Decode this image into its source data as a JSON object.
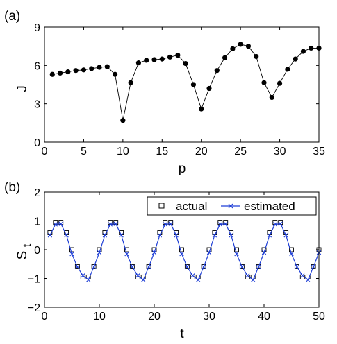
{
  "chart_data": [
    {
      "type": "line",
      "panel_label": "(a)",
      "xlabel": "p",
      "ylabel": "J",
      "xlim": [
        0,
        35
      ],
      "ylim": [
        0,
        9
      ],
      "xticks": [
        0,
        5,
        10,
        15,
        20,
        25,
        30,
        35
      ],
      "yticks": [
        0,
        3,
        6,
        9
      ],
      "grid": false,
      "series": [
        {
          "color": "#000000",
          "marker": "filled-circle",
          "x": [
            1,
            2,
            3,
            4,
            5,
            6,
            7,
            8,
            9,
            10,
            11,
            12,
            13,
            14,
            15,
            16,
            17,
            18,
            19,
            20,
            21,
            22,
            23,
            24,
            25,
            26,
            27,
            28,
            29,
            30,
            31,
            32,
            33,
            34,
            35
          ],
          "y": [
            5.3,
            5.4,
            5.5,
            5.6,
            5.65,
            5.75,
            5.85,
            5.9,
            5.3,
            1.7,
            4.65,
            6.2,
            6.4,
            6.45,
            6.5,
            6.65,
            6.8,
            6.15,
            4.5,
            2.6,
            4.2,
            5.6,
            6.6,
            7.3,
            7.65,
            7.5,
            6.7,
            4.65,
            3.5,
            4.6,
            5.7,
            6.5,
            7.1,
            7.35,
            7.35
          ]
        }
      ]
    },
    {
      "type": "line",
      "panel_label": "(b)",
      "xlabel": "t",
      "ylabel": "S",
      "ylabel_sub": "t",
      "xlim": [
        0,
        50
      ],
      "ylim": [
        -2,
        2
      ],
      "xticks": [
        0,
        10,
        20,
        30,
        40,
        50
      ],
      "yticks": [
        -2,
        -1,
        0,
        1,
        2
      ],
      "grid": false,
      "legend": "top-right",
      "series": [
        {
          "name": "actual",
          "color": "#000000",
          "marker": "open-square",
          "x": [
            1,
            2,
            3,
            4,
            5,
            6,
            7,
            8,
            9,
            10,
            11,
            12,
            13,
            14,
            15,
            16,
            17,
            18,
            19,
            20,
            21,
            22,
            23,
            24,
            25,
            26,
            27,
            28,
            29,
            30,
            31,
            32,
            33,
            34,
            35,
            36,
            37,
            38,
            39,
            40,
            41,
            42,
            43,
            44,
            45,
            46,
            47,
            48,
            49,
            50
          ],
          "y": [
            0.59,
            0.95,
            0.95,
            0.59,
            0,
            -0.59,
            -0.95,
            -0.95,
            -0.59,
            0,
            0.59,
            0.95,
            0.95,
            0.59,
            0,
            -0.59,
            -0.95,
            -0.95,
            -0.59,
            0,
            0.59,
            0.95,
            0.95,
            0.59,
            0,
            -0.59,
            -0.95,
            -0.95,
            -0.59,
            0,
            0.59,
            0.95,
            0.95,
            0.59,
            0,
            -0.59,
            -0.95,
            -0.95,
            -0.59,
            0,
            0.59,
            0.95,
            0.95,
            0.59,
            0,
            -0.59,
            -0.95,
            -0.95,
            -0.59,
            0
          ]
        },
        {
          "name": "estimated",
          "color": "#1f3fd6",
          "marker": "x",
          "x": [
            1,
            2,
            3,
            4,
            5,
            6,
            7,
            8,
            9,
            10,
            11,
            12,
            13,
            14,
            15,
            16,
            17,
            18,
            19,
            20,
            21,
            22,
            23,
            24,
            25,
            26,
            27,
            28,
            29,
            30,
            31,
            32,
            33,
            34,
            35,
            36,
            37,
            38,
            39,
            40,
            41,
            42,
            43,
            44,
            45,
            46,
            47,
            48,
            49,
            50
          ],
          "y": [
            0.5,
            0.88,
            0.9,
            0.5,
            -0.15,
            -0.6,
            -0.9,
            -1.05,
            -0.6,
            -0.1,
            0.5,
            0.88,
            0.9,
            0.5,
            -0.15,
            -0.6,
            -0.9,
            -1.05,
            -0.6,
            -0.1,
            0.5,
            0.88,
            0.9,
            0.5,
            -0.15,
            -0.6,
            -0.9,
            -1.05,
            -0.6,
            -0.1,
            0.5,
            0.88,
            0.9,
            0.5,
            -0.15,
            -0.6,
            -0.9,
            -1.05,
            -0.6,
            -0.1,
            0.5,
            0.88,
            0.9,
            0.5,
            -0.15,
            -0.6,
            -0.9,
            -1.05,
            -0.6,
            -0.1
          ]
        }
      ]
    }
  ]
}
